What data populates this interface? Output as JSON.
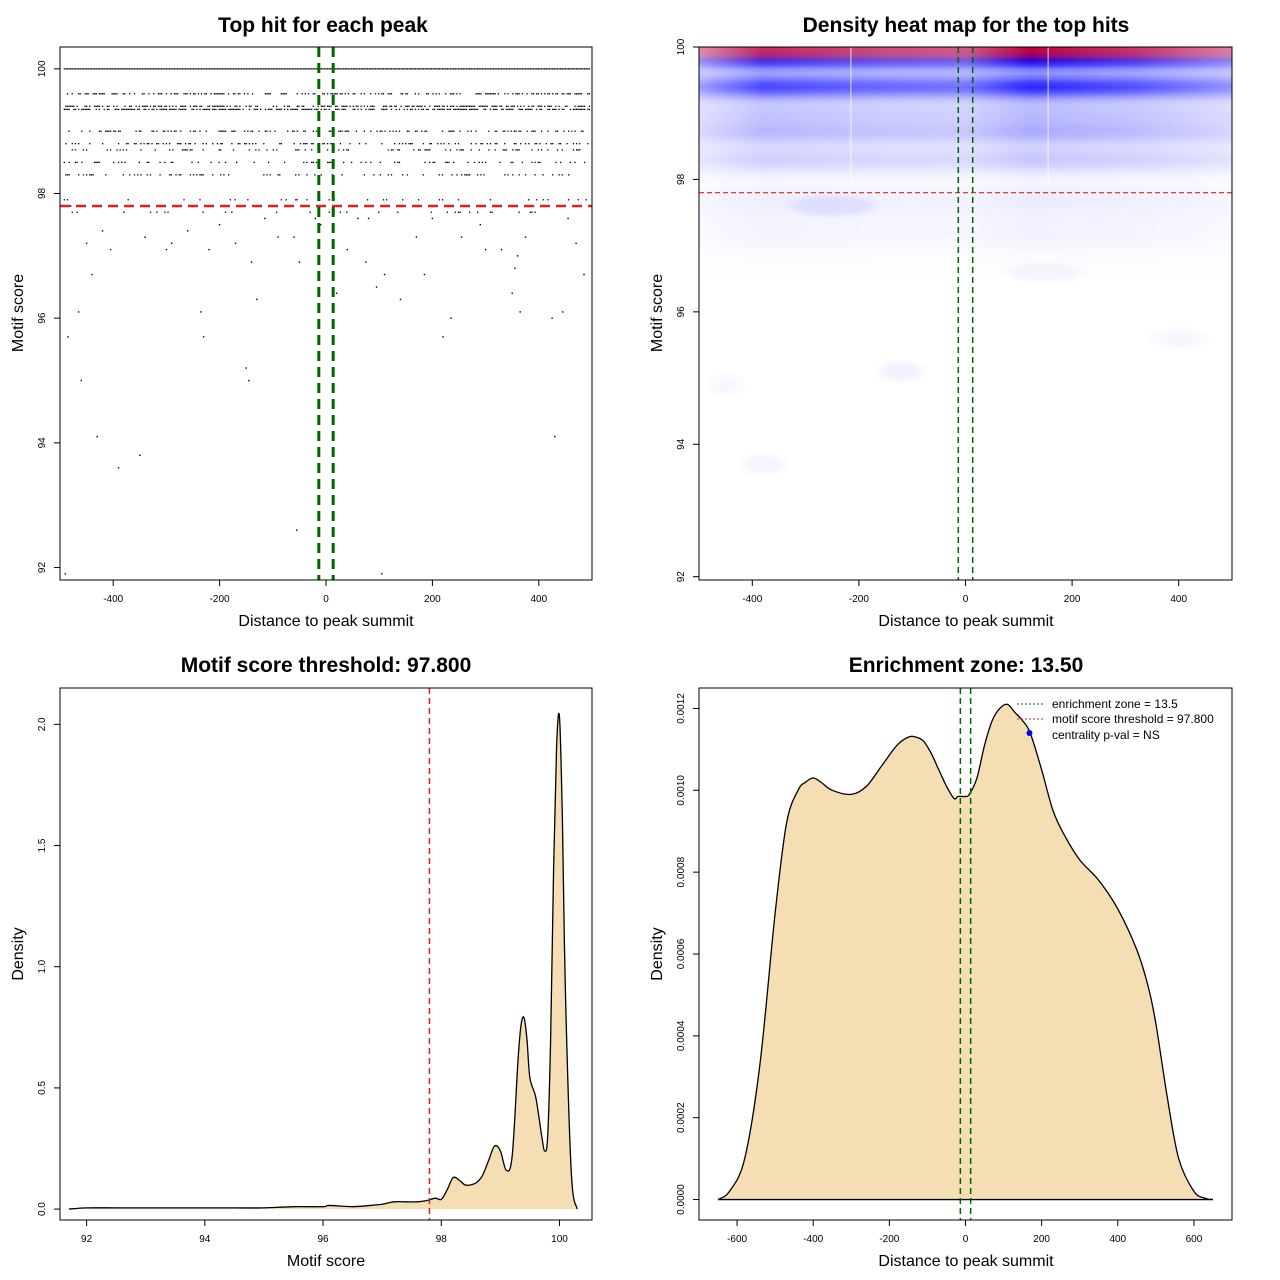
{
  "chart_data": [
    {
      "id": "scatter",
      "type": "scatter",
      "title": "Top hit for each peak",
      "xlabel": "Distance to peak summit",
      "ylabel": "Motif score",
      "xlim": [
        -500,
        500
      ],
      "ylim": [
        91.8,
        100.35
      ],
      "xticks": [
        -400,
        -200,
        0,
        200,
        400
      ],
      "xtick_labels": [
        "-400",
        "-200",
        "0",
        "200",
        "400"
      ],
      "yticks": [
        92,
        94,
        96,
        98,
        100
      ],
      "ytick_labels": [
        "92",
        "94",
        "96",
        "98",
        "100"
      ],
      "threshold": 97.8,
      "threshold_color": "#dd2222",
      "enrichment_zone": [
        -13.5,
        13.5
      ],
      "zone_color": "#006400",
      "score_rows": [
        100.0,
        99.6,
        99.4,
        99.35,
        99.0,
        98.8,
        98.7,
        98.5,
        98.3,
        97.9,
        97.7
      ],
      "row_fill": [
        1.0,
        0.45,
        0.55,
        0.6,
        0.35,
        0.3,
        0.25,
        0.22,
        0.25,
        0.12,
        0.1
      ],
      "sparse_points": [
        [
          -490,
          91.9
        ],
        [
          -485,
          95.7
        ],
        [
          -480,
          97.8
        ],
        [
          -465,
          96.1
        ],
        [
          -460,
          95.0
        ],
        [
          -450,
          97.2
        ],
        [
          -440,
          96.7
        ],
        [
          -430,
          94.1
        ],
        [
          -420,
          97.4
        ],
        [
          -405,
          97.1
        ],
        [
          -390,
          93.6
        ],
        [
          -380,
          97.7
        ],
        [
          -350,
          93.8
        ],
        [
          -340,
          97.3
        ],
        [
          -300,
          97.1
        ],
        [
          -290,
          97.2
        ],
        [
          -260,
          97.4
        ],
        [
          -235,
          96.1
        ],
        [
          -230,
          95.7
        ],
        [
          -220,
          97.1
        ],
        [
          -200,
          97.5
        ],
        [
          -170,
          97.2
        ],
        [
          -150,
          95.2
        ],
        [
          -145,
          95.0
        ],
        [
          -140,
          96.9
        ],
        [
          -130,
          96.3
        ],
        [
          -115,
          97.6
        ],
        [
          -90,
          97.3
        ],
        [
          -60,
          97.3
        ],
        [
          -55,
          92.6
        ],
        [
          -50,
          96.9
        ],
        [
          -20,
          97.6
        ],
        [
          -10,
          97.5
        ],
        [
          20,
          96.4
        ],
        [
          40,
          97.1
        ],
        [
          60,
          97.6
        ],
        [
          75,
          96.9
        ],
        [
          80,
          97.6
        ],
        [
          95,
          96.5
        ],
        [
          105,
          91.9
        ],
        [
          110,
          96.7
        ],
        [
          140,
          96.3
        ],
        [
          170,
          97.3
        ],
        [
          185,
          96.7
        ],
        [
          200,
          97.6
        ],
        [
          220,
          95.7
        ],
        [
          235,
          96.0
        ],
        [
          255,
          97.3
        ],
        [
          290,
          97.5
        ],
        [
          300,
          97.1
        ],
        [
          330,
          97.1
        ],
        [
          350,
          96.4
        ],
        [
          355,
          96.8
        ],
        [
          360,
          97.0
        ],
        [
          365,
          96.1
        ],
        [
          375,
          97.3
        ],
        [
          390,
          97.8
        ],
        [
          425,
          96.0
        ],
        [
          430,
          94.1
        ],
        [
          445,
          96.1
        ],
        [
          455,
          97.6
        ],
        [
          470,
          97.2
        ],
        [
          485,
          96.7
        ]
      ]
    },
    {
      "id": "heatmap",
      "type": "heatmap",
      "title": "Density heat map for the top hits",
      "xlabel": "Distance to peak summit",
      "ylabel": "Motif score",
      "xlim": [
        -500,
        500
      ],
      "ylim": [
        91.95,
        100.0
      ],
      "xticks": [
        -400,
        -200,
        0,
        200,
        400
      ],
      "xtick_labels": [
        "-400",
        "-200",
        "0",
        "200",
        "400"
      ],
      "yticks": [
        92,
        94,
        96,
        98,
        100
      ],
      "ytick_labels": [
        "92",
        "94",
        "96",
        "98",
        "100"
      ],
      "threshold": 97.8,
      "threshold_color": "#dd2222",
      "enrichment_zone": [
        -13.5,
        13.5
      ],
      "zone_color": "#006400",
      "low_color": "#ffffff",
      "mid_color": "#0000ff",
      "high_color": "#ff0000",
      "bands": [
        {
          "center": 100.0,
          "width": 0.15,
          "intensity": 1.6
        },
        {
          "center": 99.8,
          "width": 0.12,
          "intensity": 0.55
        },
        {
          "center": 99.4,
          "width": 0.13,
          "intensity": 0.85
        },
        {
          "center": 99.0,
          "width": 0.14,
          "intensity": 0.25
        },
        {
          "center": 98.7,
          "width": 0.13,
          "intensity": 0.3
        },
        {
          "center": 98.3,
          "width": 0.15,
          "intensity": 0.22
        },
        {
          "center": 97.7,
          "width": 0.18,
          "intensity": 0.07
        },
        {
          "center": 97.2,
          "width": 0.25,
          "intensity": 0.05
        }
      ],
      "white_lines_x": [
        -215,
        155
      ]
    },
    {
      "id": "score_density",
      "type": "area",
      "title": "Motif score threshold: 97.800",
      "xlabel": "Motif score",
      "ylabel": "Density",
      "xlim": [
        91.55,
        100.55
      ],
      "ylim": [
        -0.045,
        2.15
      ],
      "xticks": [
        92,
        94,
        96,
        98,
        100
      ],
      "xtick_labels": [
        "92",
        "94",
        "96",
        "98",
        "100"
      ],
      "yticks": [
        0.0,
        0.5,
        1.0,
        1.5,
        2.0
      ],
      "ytick_labels": [
        "0.0",
        "0.5",
        "1.0",
        "1.5",
        "2.0"
      ],
      "threshold": 97.8,
      "threshold_color": "#dd2222",
      "fill_color": "#f5deb3",
      "x": [
        91.7,
        92.0,
        92.5,
        93.0,
        93.5,
        94.0,
        94.5,
        95.0,
        95.5,
        96.0,
        96.1,
        96.5,
        96.8,
        97.0,
        97.2,
        97.4,
        97.6,
        97.75,
        97.9,
        98.0,
        98.1,
        98.2,
        98.3,
        98.4,
        98.5,
        98.6,
        98.7,
        98.8,
        98.9,
        99.0,
        99.1,
        99.2,
        99.3,
        99.35,
        99.4,
        99.45,
        99.5,
        99.6,
        99.7,
        99.75,
        99.8,
        99.85,
        99.9,
        99.95,
        100.0,
        100.05,
        100.1,
        100.2,
        100.3
      ],
      "y": [
        0.0,
        0.005,
        0.005,
        0.005,
        0.005,
        0.005,
        0.005,
        0.005,
        0.01,
        0.01,
        0.015,
        0.01,
        0.015,
        0.02,
        0.03,
        0.03,
        0.03,
        0.035,
        0.045,
        0.04,
        0.08,
        0.13,
        0.12,
        0.1,
        0.1,
        0.11,
        0.14,
        0.2,
        0.26,
        0.24,
        0.16,
        0.22,
        0.62,
        0.76,
        0.79,
        0.7,
        0.54,
        0.46,
        0.3,
        0.24,
        0.3,
        0.7,
        1.4,
        1.9,
        2.03,
        1.6,
        0.9,
        0.15,
        0.0
      ]
    },
    {
      "id": "distance_density",
      "type": "area",
      "title": "Enrichment zone: 13.50",
      "xlabel": "Distance to peak summit",
      "ylabel": "Density",
      "xlim": [
        -700,
        700
      ],
      "ylim": [
        -5e-05,
        0.00125
      ],
      "xticks": [
        -600,
        -400,
        -200,
        0,
        200,
        400,
        600
      ],
      "xtick_labels": [
        "-600",
        "-400",
        "-200",
        "0",
        "200",
        "400",
        "600"
      ],
      "yticks": [
        0.0,
        0.0002,
        0.0004,
        0.0006,
        0.0008,
        0.001,
        0.0012
      ],
      "ytick_labels": [
        "0.0000",
        "0.0002",
        "0.0004",
        "0.0006",
        "0.0008",
        "0.0010",
        "0.0012"
      ],
      "enrichment_zone": [
        -13.5,
        13.5
      ],
      "zone_color": "#006400",
      "fill_color": "#f5deb3",
      "marker": {
        "x": 168,
        "y": 0.00114,
        "color": "#0000ff"
      },
      "x": [
        -650,
        -620,
        -580,
        -540,
        -500,
        -470,
        -440,
        -420,
        -400,
        -380,
        -350,
        -300,
        -260,
        -220,
        -180,
        -150,
        -130,
        -110,
        -90,
        -70,
        -50,
        -30,
        -20,
        -10,
        0,
        10,
        30,
        50,
        70,
        90,
        110,
        130,
        150,
        170,
        200,
        230,
        260,
        300,
        350,
        400,
        450,
        480,
        500,
        530,
        560,
        600,
        630,
        650
      ],
      "y": [
        0.0,
        2e-05,
        0.0001,
        0.00033,
        0.0007,
        0.00092,
        0.001,
        0.00102,
        0.00103,
        0.00102,
        0.001,
        0.00099,
        0.00101,
        0.00106,
        0.00111,
        0.00113,
        0.00113,
        0.00112,
        0.00109,
        0.00105,
        0.00101,
        0.00098,
        0.000985,
        0.000985,
        0.000985,
        0.00099,
        0.00103,
        0.00111,
        0.00117,
        0.0012,
        0.00121,
        0.00119,
        0.00117,
        0.00114,
        0.00105,
        0.00095,
        0.00089,
        0.00083,
        0.00078,
        0.00071,
        0.00061,
        0.00052,
        0.00043,
        0.00025,
        0.0001,
        2e-05,
        3e-06,
        0.0
      ],
      "legend": [
        {
          "label": "enrichment zone = 13.5",
          "color": "#006400",
          "symbol": "dotted-line"
        },
        {
          "label": "motif score threshold = 97.800",
          "color": "#dd2222",
          "symbol": "dotted-line"
        },
        {
          "label": "centrality p-val = NS",
          "color": "#0000ff",
          "symbol": "point"
        }
      ],
      "legend_position": "top-right"
    }
  ]
}
